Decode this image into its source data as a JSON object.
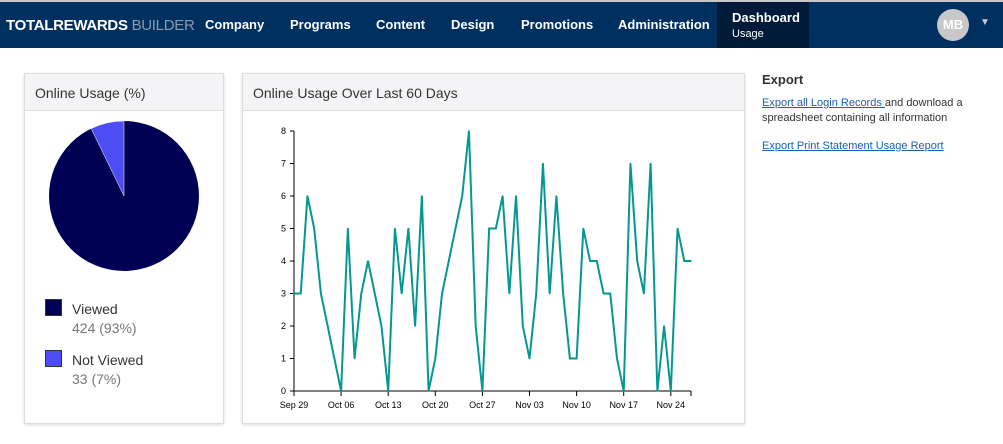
{
  "nav": {
    "brand_main": "TOTALREWARDS",
    "brand_sub": "BUILDER",
    "items": [
      "Company",
      "Programs",
      "Content",
      "Design",
      "Promotions",
      "Administration"
    ],
    "active_title": "Dashboard",
    "active_sub": "Usage",
    "avatar": "MB"
  },
  "pie_panel": {
    "title": "Online Usage (%)",
    "legend": [
      {
        "label": "Viewed",
        "value": "424 (93%)",
        "color": "#000055"
      },
      {
        "label": "Not Viewed",
        "value": "33 (7%)",
        "color": "#4d4df5"
      }
    ]
  },
  "export": {
    "title": "Export",
    "link1": "Export all Login Records ",
    "text1": "and download a spreadsheet containing all information",
    "link2": "Export Print Statement Usage Report"
  },
  "chart_data": {
    "type": "line",
    "title": "Online Usage Over Last 60 Days",
    "ylim": [
      0,
      8
    ],
    "yticks": [
      "0",
      "1",
      "2",
      "3",
      "4",
      "5",
      "6",
      "7",
      "8"
    ],
    "xticks": [
      {
        "label": "Sep 29",
        "day": 0
      },
      {
        "label": "Oct 06",
        "day": 7
      },
      {
        "label": "Oct 13",
        "day": 14
      },
      {
        "label": "Oct 20",
        "day": 21
      },
      {
        "label": "Oct 27",
        "day": 28
      },
      {
        "label": "Nov 03",
        "day": 35
      },
      {
        "label": "Nov 10",
        "day": 42
      },
      {
        "label": "Nov 17",
        "day": 49
      },
      {
        "label": "Nov 24",
        "day": 56
      }
    ],
    "color": "#079791",
    "values": [
      3,
      3,
      6,
      5,
      3,
      2,
      1,
      0,
      5,
      1,
      3,
      4,
      3,
      2,
      0,
      5,
      3,
      5,
      2,
      6,
      0,
      1,
      3,
      4,
      5,
      6,
      8,
      2,
      0,
      5,
      5,
      6,
      3,
      6,
      2,
      1,
      3,
      7,
      3,
      6,
      3,
      1,
      1,
      5,
      4,
      4,
      3,
      3,
      1,
      0,
      7,
      4,
      3,
      7,
      0,
      2,
      0,
      5,
      4,
      4
    ]
  }
}
